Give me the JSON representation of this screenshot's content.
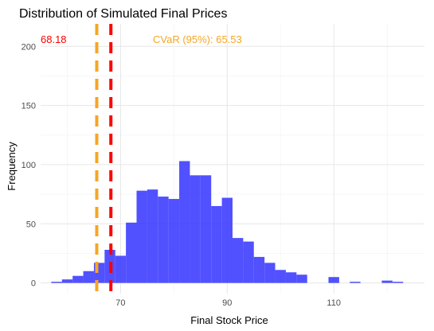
{
  "chart_data": {
    "type": "bar",
    "title": "Distribution of Simulated Final Prices",
    "xlabel": "Final Stock Price",
    "ylabel": "Frequency",
    "xlim": [
      55,
      127
    ],
    "ylim": [
      -9,
      219
    ],
    "x_ticks": [
      70,
      90,
      110
    ],
    "y_ticks": [
      0,
      50,
      100,
      150,
      200
    ],
    "grid": true,
    "bin_width": 2,
    "bin_starts": [
      57,
      59,
      61,
      63,
      65,
      67,
      69,
      71,
      73,
      75,
      77,
      79,
      81,
      83,
      85,
      87,
      89,
      91,
      93,
      95,
      97,
      99,
      101,
      103,
      105,
      107,
      109,
      111,
      113,
      115,
      117,
      119,
      121,
      123
    ],
    "counts": [
      1,
      3,
      6,
      10,
      17,
      28,
      23,
      51,
      78,
      79,
      73,
      71,
      103,
      91,
      91,
      65,
      72,
      38,
      35,
      22,
      17,
      11,
      9,
      7,
      0,
      0,
      5,
      0,
      1,
      0,
      0,
      2,
      1,
      0
    ],
    "bar_color": "#3333ff",
    "vlines": [
      {
        "x": 68.18,
        "color": "#ff0000",
        "style": "dashed",
        "label": "68.18"
      },
      {
        "x": 65.53,
        "color": "#f5a623",
        "style": "dashed",
        "label": "CVaR (95%): 65.53"
      }
    ]
  }
}
